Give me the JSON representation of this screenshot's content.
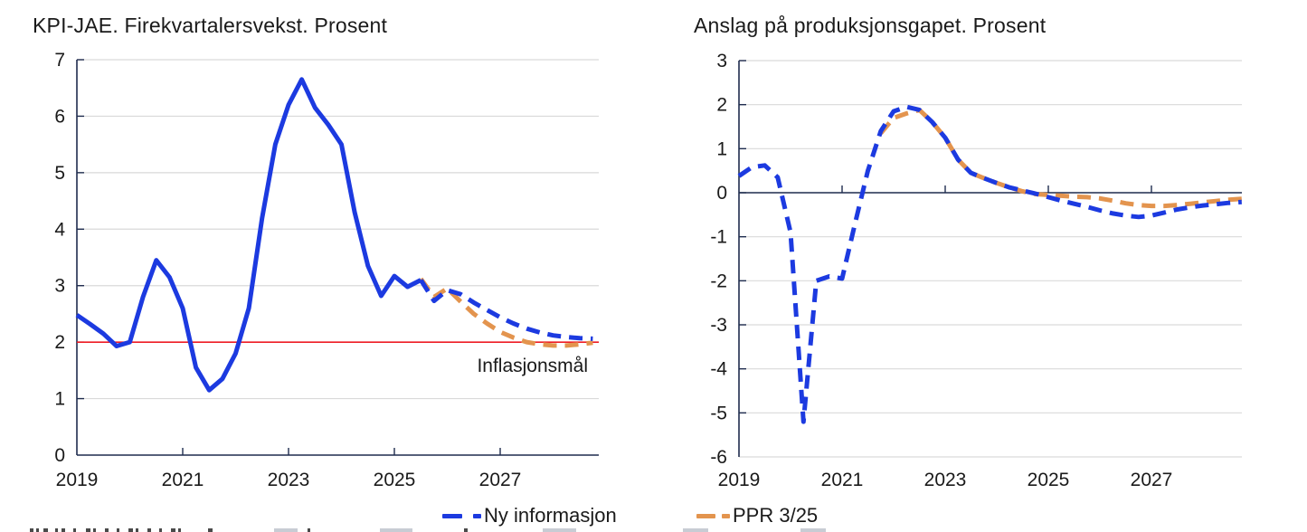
{
  "colors": {
    "blue": "#1c3ae0",
    "orange": "#e3944e",
    "red": "#ee1c25",
    "axis": "#1f2c4e",
    "grid": "#d9d9d9",
    "text": "#1a1a1a"
  },
  "legend": {
    "items": [
      {
        "label": "Ny informasjon",
        "color_key": "blue"
      },
      {
        "label": "PPR 3/25",
        "color_key": "orange"
      }
    ]
  },
  "chart_data": [
    {
      "type": "line",
      "title": "KPI-JAE. Firekvartalersvekst. Prosent",
      "ylabel": "Prosent",
      "ylim": [
        0,
        7
      ],
      "yticks": [
        0,
        1,
        2,
        3,
        4,
        5,
        6,
        7
      ],
      "xticks": [
        2019,
        2021,
        2023,
        2025,
        2027
      ],
      "x_start": 2019.0,
      "x_step": 0.25,
      "x_end": 2028.75,
      "grid": true,
      "reference_line": {
        "value": 2,
        "label": "Inflasjonsmål",
        "color_key": "red"
      },
      "series": [
        {
          "name": "PPR 3/25",
          "color_key": "orange",
          "style": "dashed",
          "start_index": 26,
          "values": [
            3.12,
            2.8,
            2.95,
            2.72,
            2.5,
            2.33,
            2.18,
            2.08,
            2.0,
            1.96,
            1.94,
            1.94,
            1.96,
            1.99
          ]
        },
        {
          "name": "Ny informasjon",
          "color_key": "blue",
          "style": "solid-then-dashed",
          "start_index": 0,
          "dashed_from_index": 26,
          "values": [
            2.48,
            2.32,
            2.15,
            1.93,
            2.0,
            2.8,
            3.45,
            3.15,
            2.6,
            1.55,
            1.15,
            1.35,
            1.8,
            2.6,
            4.2,
            5.5,
            6.2,
            6.65,
            6.15,
            5.85,
            5.5,
            4.3,
            3.35,
            2.82,
            3.17,
            2.98,
            3.1,
            2.73,
            2.92,
            2.85,
            2.7,
            2.57,
            2.44,
            2.33,
            2.24,
            2.17,
            2.12,
            2.09,
            2.07,
            2.06
          ]
        }
      ]
    },
    {
      "type": "line",
      "title": "Anslag på produksjonsgapet. Prosent",
      "ylabel": "Prosent",
      "ylim": [
        -6,
        3
      ],
      "yticks": [
        -6,
        -5,
        -4,
        -3,
        -2,
        -1,
        0,
        1,
        2,
        3
      ],
      "xticks": [
        2019,
        2021,
        2023,
        2025,
        2027
      ],
      "x_start": 2019.0,
      "x_step": 0.25,
      "x_end": 2028.75,
      "grid": true,
      "zero_line": true,
      "series": [
        {
          "name": "PPR 3/25",
          "color_key": "orange",
          "style": "dashed",
          "start_index": 11,
          "values": [
            1.35,
            1.7,
            1.8,
            1.88,
            1.6,
            1.25,
            0.75,
            0.45,
            0.33,
            0.22,
            0.12,
            0.03,
            -0.03,
            -0.05,
            -0.07,
            -0.09,
            -0.1,
            -0.13,
            -0.18,
            -0.24,
            -0.28,
            -0.3,
            -0.3,
            -0.28,
            -0.25,
            -0.22,
            -0.19,
            -0.16,
            -0.14
          ]
        },
        {
          "name": "Ny informasjon",
          "color_key": "blue",
          "style": "dashed",
          "start_index": 0,
          "values": [
            0.38,
            0.58,
            0.62,
            0.35,
            -0.9,
            -5.2,
            -2.0,
            -1.9,
            -1.95,
            -0.7,
            0.5,
            1.4,
            1.85,
            1.95,
            1.88,
            1.6,
            1.25,
            0.75,
            0.45,
            0.33,
            0.22,
            0.12,
            0.05,
            -0.02,
            -0.1,
            -0.18,
            -0.25,
            -0.32,
            -0.4,
            -0.47,
            -0.52,
            -0.55,
            -0.52,
            -0.45,
            -0.38,
            -0.33,
            -0.29,
            -0.26,
            -0.23,
            -0.21
          ]
        }
      ]
    }
  ]
}
